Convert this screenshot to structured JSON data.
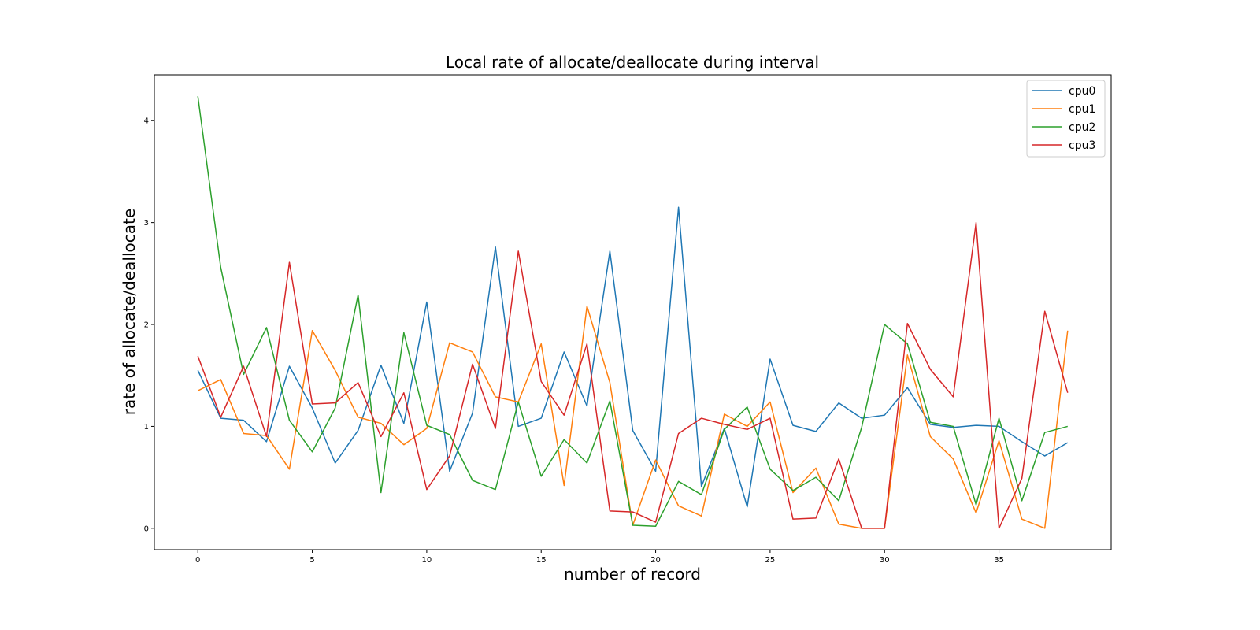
{
  "chart_data": {
    "type": "line",
    "title": "Local rate of allocate/deallocate during interval",
    "xlabel": "number of record",
    "ylabel": "rate of allocate/deallocate",
    "xlim": [
      -1.9,
      39.9
    ],
    "ylim": [
      -0.21,
      4.45
    ],
    "xticks": [
      0,
      5,
      10,
      15,
      20,
      25,
      30,
      35
    ],
    "yticks": [
      0,
      1,
      2,
      3,
      4
    ],
    "grid": false,
    "legend_position": "top-right",
    "x": [
      0,
      1,
      2,
      3,
      4,
      5,
      6,
      7,
      8,
      9,
      10,
      11,
      12,
      13,
      14,
      15,
      16,
      17,
      18,
      19,
      20,
      21,
      22,
      23,
      24,
      25,
      26,
      27,
      28,
      29,
      30,
      31,
      32,
      33,
      34,
      35,
      36,
      37,
      38
    ],
    "series": [
      {
        "name": "cpu0",
        "color": "#1f77b4",
        "values": [
          1.55,
          1.08,
          1.06,
          0.85,
          1.59,
          1.18,
          0.64,
          0.96,
          1.6,
          1.03,
          2.22,
          0.56,
          1.13,
          2.76,
          1.0,
          1.08,
          1.73,
          1.2,
          2.72,
          0.96,
          0.56,
          3.15,
          0.41,
          0.98,
          0.21,
          1.66,
          1.01,
          0.95,
          1.23,
          1.08,
          1.11,
          1.38,
          1.02,
          0.99,
          1.01,
          1.0,
          0.85,
          0.71,
          0.84
        ]
      },
      {
        "name": "cpu1",
        "color": "#ff7f0e",
        "values": [
          1.35,
          1.46,
          0.93,
          0.91,
          0.58,
          1.94,
          1.55,
          1.09,
          1.03,
          0.82,
          0.98,
          1.82,
          1.73,
          1.29,
          1.24,
          1.81,
          0.42,
          2.18,
          1.43,
          0.03,
          0.67,
          0.22,
          0.12,
          1.12,
          1.0,
          1.24,
          0.35,
          0.59,
          0.04,
          0.0,
          0.0,
          1.7,
          0.9,
          0.68,
          0.15,
          0.86,
          0.09,
          0.0,
          1.94
        ]
      },
      {
        "name": "cpu2",
        "color": "#2ca02c",
        "values": [
          4.24,
          2.56,
          1.51,
          1.97,
          1.06,
          0.75,
          1.18,
          2.29,
          0.35,
          1.92,
          1.01,
          0.92,
          0.47,
          0.38,
          1.24,
          0.51,
          0.87,
          0.64,
          1.25,
          0.03,
          0.02,
          0.46,
          0.33,
          0.97,
          1.19,
          0.58,
          0.37,
          0.5,
          0.27,
          0.99,
          2.0,
          1.81,
          1.04,
          1.0,
          0.23,
          1.08,
          0.27,
          0.94,
          1.0
        ]
      },
      {
        "name": "cpu3",
        "color": "#d62728",
        "values": [
          1.69,
          1.09,
          1.59,
          0.9,
          2.61,
          1.22,
          1.23,
          1.43,
          0.9,
          1.33,
          0.38,
          0.71,
          1.61,
          0.98,
          2.72,
          1.44,
          1.11,
          1.81,
          0.17,
          0.16,
          0.06,
          0.93,
          1.08,
          1.02,
          0.97,
          1.08,
          0.09,
          0.1,
          0.68,
          0.0,
          0.0,
          2.01,
          1.56,
          1.29,
          3.0,
          0.0,
          0.49,
          2.13,
          1.33
        ]
      }
    ]
  }
}
